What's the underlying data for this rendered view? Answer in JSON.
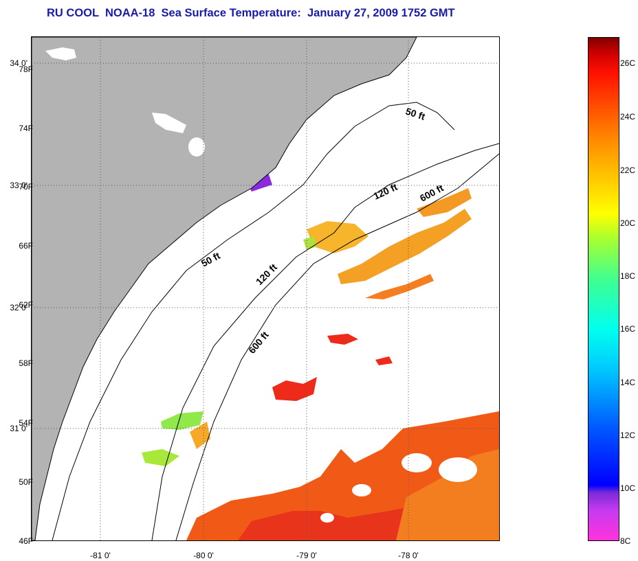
{
  "title": "RU COOL  NOAA-18  Sea Surface Temperature:  January 27, 2009 1752 GMT",
  "lat_labels": [
    "34 0'",
    "33 0'",
    "32 0'",
    "31 0'"
  ],
  "lon_labels": [
    "-81 0'",
    "-80 0'",
    "-79 0'",
    "-78 0'"
  ],
  "depth_contours": {
    "labels_50": "50 ft",
    "labels_120": "120 ft",
    "labels_600": "600 ft"
  },
  "colorbar": {
    "fahrenheit_labels": [
      "78F",
      "74F",
      "70F",
      "66F",
      "62F",
      "58F",
      "54F",
      "50F",
      "46F"
    ],
    "celsius_labels": [
      "26C",
      "24C",
      "22C",
      "20C",
      "18C",
      "16C",
      "14C",
      "12C",
      "10C",
      "8C"
    ]
  },
  "colors": {
    "land": "#b3b3b3",
    "title": "#1a1aa8"
  }
}
